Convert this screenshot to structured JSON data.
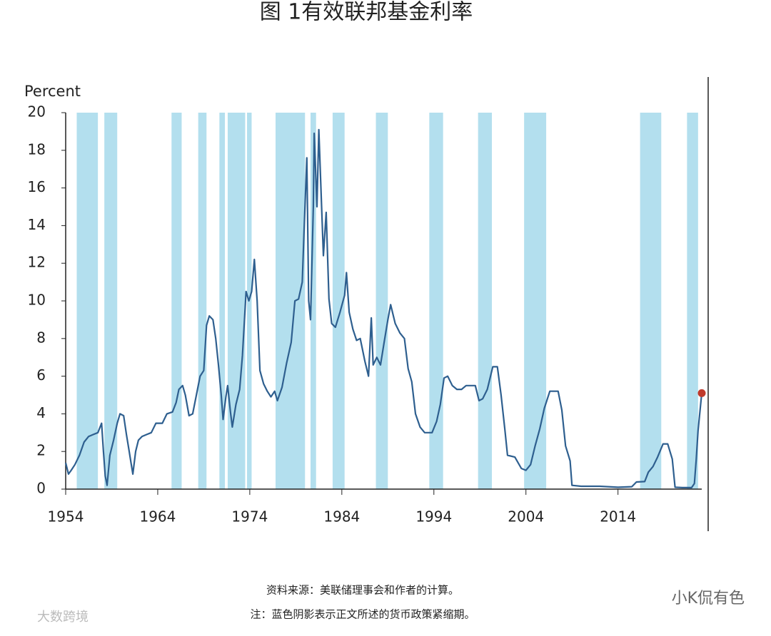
{
  "chart_data": {
    "type": "line",
    "title": "图 1有效联邦基金利率",
    "ylabel": "Percent",
    "source": "资料来源：美联储理事会和作者的计算。",
    "note": "注：蓝色阴影表示正文所述的货币政策紧缩期。",
    "xlim": [
      1954,
      2023.1
    ],
    "xticks": [
      1954,
      1964,
      1974,
      1984,
      1994,
      2004,
      2014
    ],
    "ylim": [
      0,
      20
    ],
    "yticks": [
      0,
      2,
      4,
      6,
      8,
      10,
      12,
      14,
      16,
      18,
      20
    ],
    "shading_color": "#b3dfee",
    "end_marker_color": "#c0392b",
    "shading": [
      [
        1955.2,
        1957.5
      ],
      [
        1958.2,
        1959.6
      ],
      [
        1965.5,
        1966.6
      ],
      [
        1968.4,
        1969.3
      ],
      [
        1970.7,
        1971.3
      ],
      [
        1971.6,
        1973.5
      ],
      [
        1973.7,
        1974.2
      ],
      [
        1976.8,
        1980.0
      ],
      [
        1980.6,
        1981.2
      ],
      [
        1983.0,
        1984.3
      ],
      [
        1987.7,
        1989.0
      ],
      [
        1993.5,
        1995.0
      ],
      [
        1998.8,
        2000.3
      ],
      [
        2003.8,
        2006.2
      ],
      [
        2016.4,
        2018.7
      ],
      [
        2021.5,
        2022.7
      ]
    ],
    "series": [
      {
        "name": "Effective federal funds rate",
        "color": "#2e5f8f",
        "x": [
          1954.0,
          1954.3,
          1954.6,
          1955.0,
          1955.5,
          1956.0,
          1956.5,
          1957.0,
          1957.5,
          1957.9,
          1958.1,
          1958.3,
          1958.5,
          1958.8,
          1959.2,
          1959.6,
          1959.9,
          1960.3,
          1960.6,
          1960.9,
          1961.1,
          1961.3,
          1961.6,
          1961.9,
          1962.3,
          1962.8,
          1963.3,
          1963.8,
          1964.5,
          1965.0,
          1965.6,
          1966.0,
          1966.3,
          1966.7,
          1967.0,
          1967.4,
          1967.8,
          1968.2,
          1968.6,
          1969.0,
          1969.3,
          1969.6,
          1970.0,
          1970.3,
          1970.6,
          1970.9,
          1971.1,
          1971.4,
          1971.6,
          1971.9,
          1972.1,
          1972.5,
          1972.9,
          1973.2,
          1973.6,
          1973.9,
          1974.2,
          1974.5,
          1974.8,
          1975.1,
          1975.5,
          1975.9,
          1976.3,
          1976.7,
          1977.0,
          1977.5,
          1978.0,
          1978.5,
          1978.9,
          1979.3,
          1979.7,
          1979.9,
          1980.2,
          1980.4,
          1980.6,
          1980.9,
          1981.0,
          1981.3,
          1981.5,
          1981.8,
          1982.0,
          1982.3,
          1982.6,
          1982.9,
          1983.3,
          1983.8,
          1984.3,
          1984.5,
          1984.8,
          1985.2,
          1985.6,
          1986.0,
          1986.5,
          1986.9,
          1987.2,
          1987.4,
          1987.8,
          1988.2,
          1988.6,
          1989.0,
          1989.3,
          1989.8,
          1990.3,
          1990.8,
          1991.2,
          1991.6,
          1992.0,
          1992.5,
          1993.0,
          1993.8,
          1994.3,
          1994.7,
          1995.1,
          1995.5,
          1996.0,
          1996.5,
          1997.0,
          1997.5,
          1998.0,
          1998.5,
          1998.9,
          1999.3,
          1999.8,
          2000.4,
          2000.9,
          2001.3,
          2001.7,
          2002.0,
          2002.8,
          2003.5,
          2004.0,
          2004.5,
          2005.0,
          2005.5,
          2006.0,
          2006.6,
          2007.5,
          2007.9,
          2008.3,
          2008.8,
          2009.0,
          2010.0,
          2012.0,
          2014.0,
          2015.5,
          2016.0,
          2016.9,
          2017.3,
          2017.8,
          2018.3,
          2018.9,
          2019.4,
          2019.9,
          2020.2,
          2021.0,
          2022.0,
          2022.3,
          2022.5,
          2022.7,
          2022.9,
          2023.1
        ],
        "values": [
          1.4,
          0.8,
          1.0,
          1.3,
          1.8,
          2.5,
          2.8,
          2.9,
          3.0,
          3.5,
          2.0,
          0.7,
          0.2,
          1.8,
          2.6,
          3.5,
          4.0,
          3.9,
          2.9,
          2.0,
          1.4,
          0.8,
          2.0,
          2.6,
          2.8,
          2.9,
          3.0,
          3.5,
          3.5,
          4.0,
          4.1,
          4.6,
          5.3,
          5.5,
          5.0,
          3.9,
          4.0,
          5.0,
          6.0,
          6.3,
          8.7,
          9.2,
          9.0,
          8.0,
          6.6,
          5.0,
          3.7,
          4.9,
          5.5,
          4.1,
          3.3,
          4.5,
          5.3,
          7.1,
          10.5,
          10.0,
          10.5,
          12.2,
          10.0,
          6.3,
          5.6,
          5.2,
          4.9,
          5.2,
          4.7,
          5.4,
          6.7,
          7.8,
          10.0,
          10.1,
          11.0,
          13.8,
          17.6,
          10.0,
          9.0,
          15.0,
          18.9,
          15.0,
          19.1,
          15.0,
          12.4,
          14.7,
          10.1,
          8.8,
          8.6,
          9.4,
          10.3,
          11.5,
          9.4,
          8.5,
          7.9,
          8.0,
          6.8,
          6.0,
          9.1,
          6.6,
          7.0,
          6.6,
          7.8,
          9.0,
          9.8,
          8.8,
          8.3,
          8.0,
          6.4,
          5.7,
          4.0,
          3.3,
          3.0,
          3.0,
          3.6,
          4.5,
          5.9,
          6.0,
          5.5,
          5.3,
          5.3,
          5.5,
          5.5,
          5.5,
          4.7,
          4.8,
          5.3,
          6.5,
          6.5,
          5.0,
          3.2,
          1.8,
          1.7,
          1.1,
          1.0,
          1.3,
          2.3,
          3.2,
          4.3,
          5.2,
          5.2,
          4.2,
          2.3,
          1.5,
          0.2,
          0.15,
          0.15,
          0.1,
          0.13,
          0.38,
          0.4,
          0.9,
          1.2,
          1.7,
          2.4,
          2.4,
          1.6,
          0.1,
          0.08,
          0.08,
          0.3,
          1.6,
          3.1,
          4.1,
          5.1
        ]
      }
    ]
  },
  "watermarks": [
    "小K侃有色",
    "大数跨境"
  ]
}
